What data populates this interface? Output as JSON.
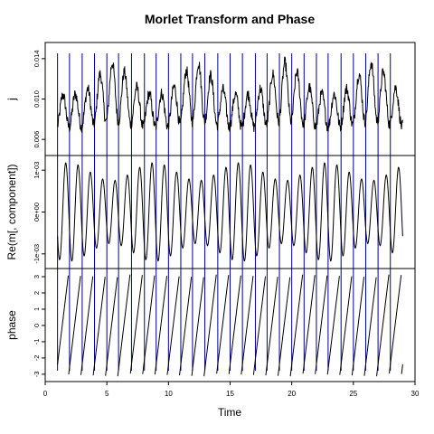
{
  "chart_data": {
    "type": "line",
    "title": "Morlet Transform and Phase",
    "xlabel": "Time",
    "xlim": [
      0,
      30
    ],
    "x_ticks": [
      0,
      5,
      10,
      15,
      20,
      25,
      30
    ],
    "colors": {
      "series": "#000000",
      "markers": "#00008b",
      "frame": "#000000"
    },
    "marker_times": [
      1.0,
      1.97,
      3.0,
      4.0,
      5.0,
      5.95,
      7.0,
      8.05,
      9.0,
      10.0,
      11.0,
      11.95,
      12.95,
      14.0,
      15.0,
      16.0,
      17.05,
      18.0,
      19.0,
      20.0,
      21.0,
      22.0,
      22.95,
      24.0,
      25.0,
      26.0,
      27.0,
      28.0
    ],
    "panels": [
      {
        "ylabel": "j",
        "ylim": [
          0.0044,
          0.0156
        ],
        "y_ticks": [
          0.006,
          0.01,
          0.014
        ],
        "y_tick_labels": [
          "0.006",
          "0.010",
          "0.014"
        ],
        "series": {
          "t_start": 1.0,
          "t_end": 29.0,
          "kind": "noisy-signal",
          "baseline": 0.0088,
          "wave_amp": 0.0016,
          "period": 1.0,
          "envelope_peaks": [
            5.5,
            12.3,
            19.5,
            26.5
          ],
          "envelope_amp": 0.0032,
          "noise": 0.0006,
          "min": 0.0053,
          "max": 0.0148
        }
      },
      {
        "ylabel": "Re(m[, component])",
        "ylim": [
          -0.00135,
          0.00135
        ],
        "y_ticks": [
          -0.001,
          0,
          0.001
        ],
        "y_tick_labels": [
          "-1e-03",
          "0e+00",
          "1e-03"
        ],
        "series": {
          "t_start": 1.0,
          "t_end": 29.0,
          "kind": "oscillation",
          "period": 1.0,
          "amp_min": 0.00075,
          "amp_max": 0.00118
        }
      },
      {
        "ylabel": "phase",
        "ylim": [
          -3.45,
          3.5
        ],
        "y_ticks": [
          -3,
          -2,
          -1,
          0,
          1,
          2,
          3
        ],
        "y_tick_labels": [
          "-3",
          "-2",
          "-1",
          "0",
          "1",
          "2",
          "3"
        ],
        "series": {
          "t_start": 1.0,
          "t_end": 29.0,
          "kind": "sawtooth",
          "period": 1.0,
          "min": -3.14,
          "max": 3.14,
          "start_value": -2.4,
          "end_value": 1.75
        }
      }
    ]
  }
}
